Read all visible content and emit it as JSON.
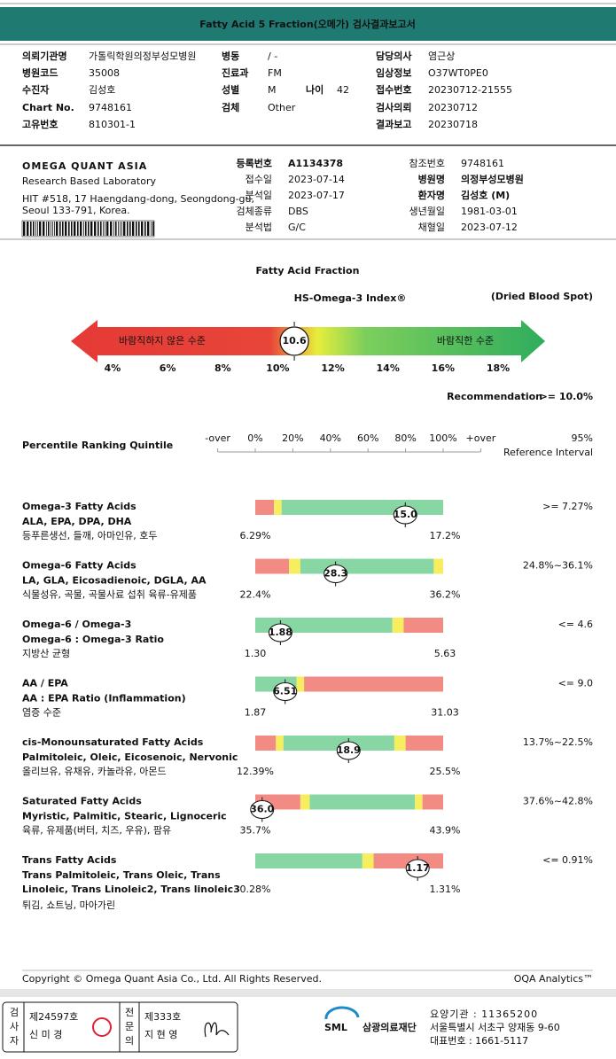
{
  "header": {
    "title": "Fatty Acid 5 Fraction(오메가) 검사결과보고서"
  },
  "patient": {
    "rows": [
      [
        [
          "의뢰기관명",
          "가톨릭학원의정부성모병원"
        ],
        [
          "병동",
          "/ -"
        ],
        [
          "담당의사",
          "염근상"
        ]
      ],
      [
        [
          "병원코드",
          "35008"
        ],
        [
          "진료과",
          "FM"
        ],
        [
          "임상정보",
          "O37WT0PE0"
        ]
      ],
      [
        [
          "수진자",
          "김성호"
        ],
        [
          "성별",
          "M"
        ],
        [
          "나이",
          "42"
        ],
        [
          "접수번호",
          "20230712-21555"
        ]
      ],
      [
        [
          "Chart No.",
          "9748161"
        ],
        [
          "검체",
          "Other"
        ],
        [
          "검사의뢰",
          "20230712"
        ]
      ],
      [
        [
          "고유번호",
          "810301-1"
        ],
        [
          "결과보고",
          "20230718"
        ]
      ]
    ]
  },
  "lab": {
    "logo": "OMEGA QUANT ASIA",
    "tagline": "Research Based Laboratory",
    "address": [
      "HIT #518, 17 Haengdang-dong, Seongdong-gu,",
      "Seoul 133-791, Korea."
    ],
    "fields_left": [
      [
        "등록번호",
        "A1134378"
      ],
      [
        "접수일",
        "2023-07-14"
      ],
      [
        "분석일",
        "2023-07-17"
      ],
      [
        "검체종류",
        "DBS"
      ],
      [
        "분석법",
        "G/C"
      ]
    ],
    "fields_right": [
      [
        "참조번호",
        "9748161"
      ],
      [
        "병원명",
        "의정부성모병원"
      ],
      [
        "환자명",
        "김성호 (M)"
      ],
      [
        "생년월일",
        "1981-03-01"
      ],
      [
        "채혈일",
        "2023-07-12"
      ]
    ]
  },
  "gauge": {
    "title": "Fatty Acid Fraction",
    "index_name": "HS-Omega-3 Index®",
    "note": "(Dried Blood Spot)",
    "low_label": "바람직하지 않은 수준",
    "high_label": "바람직한 수준",
    "value": 10.6,
    "xlim": [
      4,
      18
    ],
    "xticks": [
      {
        "value": 4,
        "label": "4%"
      },
      {
        "value": 6,
        "label": "6%"
      },
      {
        "value": 8,
        "label": "8%"
      },
      {
        "value": 10,
        "label": "10%"
      },
      {
        "value": 12,
        "label": "12%"
      },
      {
        "value": 14,
        "label": "14%"
      },
      {
        "value": 16,
        "label": "16%"
      },
      {
        "value": 18,
        "label": "18%"
      }
    ],
    "recommendation_label": "Recommendation",
    "recommendation": ">= 10.0%"
  },
  "percentile": {
    "title": "Percentile Ranking Quintile",
    "xlim": [
      0,
      100
    ],
    "xticks": [
      {
        "value": -20,
        "label": "-over"
      },
      {
        "value": 0,
        "label": "0%"
      },
      {
        "value": 20,
        "label": "20%"
      },
      {
        "value": 40,
        "label": "40%"
      },
      {
        "value": 60,
        "label": "60%"
      },
      {
        "value": 80,
        "label": "80%"
      },
      {
        "value": 100,
        "label": "100%"
      },
      {
        "value": 120,
        "label": "+over"
      }
    ],
    "ref_header": [
      "95%",
      "Reference Interval"
    ],
    "rows": [
      {
        "name": "Omega-3 Fatty Acids",
        "subtitle": [
          "ALA, EPA, DPA, DHA"
        ],
        "food": "등푸른생선, 들깨, 아마인유, 호두",
        "value": 15.0,
        "value_label": "15.0",
        "low": {
          "value": 6.29,
          "label": "6.29%"
        },
        "high": {
          "value": 17.2,
          "label": "17.2%"
        },
        "reference": ">= 7.27%",
        "zones": [
          {
            "color": "#f28b84",
            "from": 0,
            "to": 10
          },
          {
            "color": "#f6ee5e",
            "from": 10,
            "to": 14
          },
          {
            "color": "#87d6a4",
            "from": 14,
            "to": 100
          }
        ]
      },
      {
        "name": "Omega-6 Fatty Acids",
        "subtitle": [
          "LA, GLA, Eicosadienoic, DGLA, AA"
        ],
        "food": "식물성유, 곡물, 곡물사료 섭취 육류-유제품",
        "value": 28.3,
        "low": {
          "value": 22.4,
          "label": "22.4%"
        },
        "high": {
          "value": 36.2,
          "label": "36.2%"
        },
        "reference": "24.8%~36.1%",
        "zones": [
          {
            "color": "#f28b84",
            "from": 0,
            "to": 18
          },
          {
            "color": "#f6ee5e",
            "from": 18,
            "to": 24
          },
          {
            "color": "#87d6a4",
            "from": 24,
            "to": 95
          },
          {
            "color": "#f6ee5e",
            "from": 95,
            "to": 100
          }
        ]
      },
      {
        "name": "Omega-6 / Omega-3",
        "subtitle": [
          "Omega-6 : Omega-3 Ratio"
        ],
        "food": "지방산 균형",
        "value": 1.88,
        "low": {
          "value": 1.3,
          "label": "1.30"
        },
        "high": {
          "value": 5.63,
          "label": "5.63"
        },
        "reference": "<= 4.6",
        "zones": [
          {
            "color": "#87d6a4",
            "from": 0,
            "to": 73
          },
          {
            "color": "#f6ee5e",
            "from": 73,
            "to": 79
          },
          {
            "color": "#f28b84",
            "from": 79,
            "to": 100
          }
        ]
      },
      {
        "name": "AA / EPA",
        "subtitle": [
          "AA : EPA Ratio (Inflammation)"
        ],
        "food": "염증 수준",
        "value": 6.51,
        "low": {
          "value": 1.87,
          "label": "1.87"
        },
        "high": {
          "value": 31.03,
          "label": "31.03"
        },
        "reference": "<= 9.0",
        "zones": [
          {
            "color": "#87d6a4",
            "from": 0,
            "to": 22
          },
          {
            "color": "#f6ee5e",
            "from": 22,
            "to": 26
          },
          {
            "color": "#f28b84",
            "from": 26,
            "to": 100
          }
        ]
      },
      {
        "name": "cis-Monounsaturated Fatty Acids",
        "subtitle": [
          "Palmitoleic, Oleic, Eicosenoic, Nervonic"
        ],
        "food": "올리브유, 유채유, 카놀라유, 아몬드",
        "value": 18.9,
        "low": {
          "value": 12.39,
          "label": "12.39%"
        },
        "high": {
          "value": 25.5,
          "label": "25.5%"
        },
        "reference": "13.7%~22.5%",
        "zones": [
          {
            "color": "#f28b84",
            "from": 0,
            "to": 11
          },
          {
            "color": "#f6ee5e",
            "from": 11,
            "to": 15
          },
          {
            "color": "#87d6a4",
            "from": 15,
            "to": 74
          },
          {
            "color": "#f6ee5e",
            "from": 74,
            "to": 80
          },
          {
            "color": "#f28b84",
            "from": 80,
            "to": 100
          }
        ]
      },
      {
        "name": "Saturated Fatty Acids",
        "subtitle": [
          "Myristic, Palmitic, Stearic, Lignoceric"
        ],
        "food": "육류, 유제품(버터, 치즈, 우유), 팜유",
        "value": 36.0,
        "value_label": "36.0",
        "low": {
          "value": 35.7,
          "label": "35.7%"
        },
        "high": {
          "value": 43.9,
          "label": "43.9%"
        },
        "reference": "37.6%~42.8%",
        "zones": [
          {
            "color": "#f28b84",
            "from": 0,
            "to": 24
          },
          {
            "color": "#f6ee5e",
            "from": 24,
            "to": 29
          },
          {
            "color": "#87d6a4",
            "from": 29,
            "to": 85
          },
          {
            "color": "#f6ee5e",
            "from": 85,
            "to": 89
          },
          {
            "color": "#f28b84",
            "from": 89,
            "to": 100
          }
        ]
      },
      {
        "name": "Trans Fatty Acids",
        "subtitle": [
          "Trans Palmitoleic, Trans Oleic, Trans",
          "Linoleic, Trans Linoleic2, Trans linoleic3"
        ],
        "food": "튀김, 쇼트닝, 마아가린",
        "value": 1.17,
        "low": {
          "value": 0.28,
          "label": "0.28%"
        },
        "high": {
          "value": 1.31,
          "label": "1.31%"
        },
        "reference": "<= 0.91%",
        "zones": [
          {
            "color": "#87d6a4",
            "from": 0,
            "to": 57
          },
          {
            "color": "#f6ee5e",
            "from": 57,
            "to": 63
          },
          {
            "color": "#f28b84",
            "from": 63,
            "to": 100
          }
        ]
      }
    ]
  },
  "footer": {
    "copyright": "Copyright © Omega Quant Asia Co., Ltd.  All Rights Reserved.",
    "brand": "OQA Analytics™"
  },
  "signatures": [
    {
      "role": "검사자",
      "license": "제24597호",
      "name": "신 미 경"
    },
    {
      "role": "전문의",
      "license": "제333호",
      "name": "지 현 영"
    }
  ],
  "institution": {
    "logo": "SML",
    "name": "삼광의료재단",
    "lines": [
      "요양기관 : 11365200",
      "서울특별시 서초구 양재동 9-60",
      "대표번호 : 1661-5117"
    ]
  }
}
